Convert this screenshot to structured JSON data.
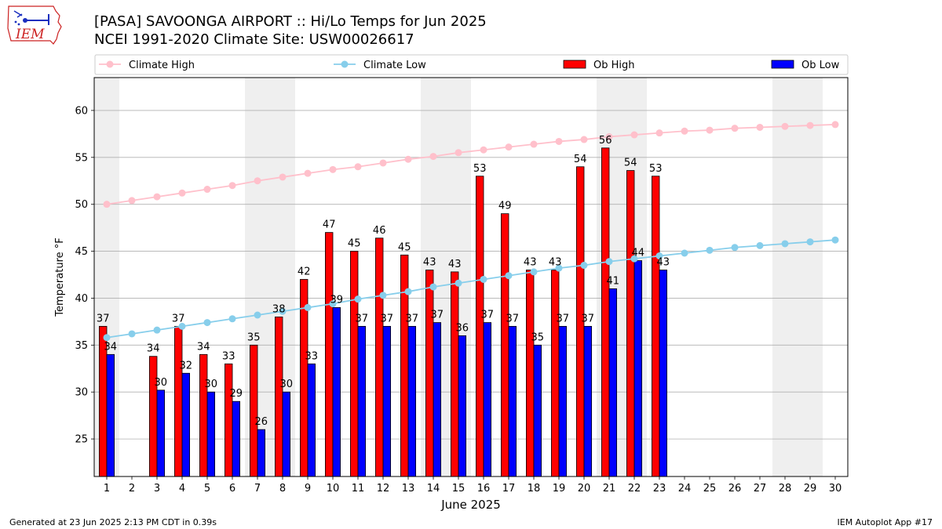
{
  "header": {
    "title": "[PASA] SAVOONGA AIRPORT :: Hi/Lo Temps for Jun 2025",
    "subtitle": "NCEI 1991-2020 Climate Site: USW00026617"
  },
  "logo": {
    "text": "IEM",
    "icon": "iowa-state-outline-icon"
  },
  "footer": {
    "left": "Generated at 23 Jun 2025 2:13 PM CDT in 0.39s",
    "right": "IEM Autoplot App #17"
  },
  "chart_data": {
    "type": "bar",
    "xlabel": "June 2025",
    "ylabel": "Temperature °F",
    "ylim": [
      21,
      63.5
    ],
    "xlim": [
      0.5,
      30.5
    ],
    "yticks": [
      25,
      30,
      35,
      40,
      45,
      50,
      55,
      60
    ],
    "grid": "horizontal",
    "legend_position": "top",
    "weekend_shading": [
      [
        1,
        1
      ],
      [
        7,
        8
      ],
      [
        14,
        15
      ],
      [
        21,
        22
      ],
      [
        28,
        29
      ]
    ],
    "x": [
      1,
      2,
      3,
      4,
      5,
      6,
      7,
      8,
      9,
      10,
      11,
      12,
      13,
      14,
      15,
      16,
      17,
      18,
      19,
      20,
      21,
      22,
      23,
      24,
      25,
      26,
      27,
      28,
      29,
      30
    ],
    "series": [
      {
        "name": "Climate High",
        "kind": "line",
        "color": "#ffc0cb",
        "values": [
          50.0,
          50.4,
          50.8,
          51.2,
          51.6,
          52.0,
          52.5,
          52.9,
          53.3,
          53.7,
          54.0,
          54.4,
          54.8,
          55.1,
          55.5,
          55.8,
          56.1,
          56.4,
          56.7,
          56.9,
          57.2,
          57.4,
          57.6,
          57.8,
          57.9,
          58.1,
          58.2,
          58.3,
          58.4,
          58.5
        ]
      },
      {
        "name": "Climate Low",
        "kind": "line",
        "color": "#87ceeb",
        "values": [
          35.8,
          36.2,
          36.6,
          37.0,
          37.4,
          37.8,
          38.2,
          38.6,
          39.0,
          39.4,
          39.9,
          40.3,
          40.7,
          41.2,
          41.6,
          42.0,
          42.4,
          42.8,
          43.2,
          43.5,
          43.9,
          44.2,
          44.5,
          44.8,
          45.1,
          45.4,
          45.6,
          45.8,
          46.0,
          46.2
        ]
      },
      {
        "name": "Ob High",
        "kind": "bar",
        "color": "#ff0000",
        "values": [
          37.0,
          null,
          33.8,
          37.0,
          34.0,
          33.0,
          35.0,
          38.0,
          42.0,
          47.0,
          45.0,
          46.4,
          44.6,
          43.0,
          42.8,
          53.0,
          49.0,
          43.0,
          43.0,
          54.0,
          56.0,
          53.6,
          53.0,
          null,
          null,
          null,
          null,
          null,
          null,
          null
        ],
        "labels": [
          "37",
          "",
          "34",
          "37",
          "34",
          "33",
          "35",
          "38",
          "42",
          "47",
          "45",
          "46",
          "45",
          "43",
          "43",
          "53",
          "49",
          "43",
          "43",
          "54",
          "56",
          "54",
          "53",
          "",
          "",
          "",
          "",
          "",
          "",
          ""
        ]
      },
      {
        "name": "Ob Low",
        "kind": "bar",
        "color": "#0000ff",
        "values": [
          34.0,
          null,
          30.2,
          32.0,
          30.0,
          29.0,
          26.0,
          30.0,
          33.0,
          39.0,
          37.0,
          37.0,
          37.0,
          37.4,
          36.0,
          37.4,
          37.0,
          35.0,
          37.0,
          37.0,
          41.0,
          44.0,
          43.0,
          null,
          null,
          null,
          null,
          null,
          null,
          null
        ],
        "labels": [
          "34",
          "",
          "30",
          "32",
          "30",
          "29",
          "26",
          "30",
          "33",
          "39",
          "37",
          "37",
          "37",
          "37",
          "36",
          "37",
          "37",
          "35",
          "37",
          "37",
          "41",
          "44",
          "43",
          "",
          "",
          "",
          "",
          "",
          "",
          ""
        ]
      }
    ]
  }
}
